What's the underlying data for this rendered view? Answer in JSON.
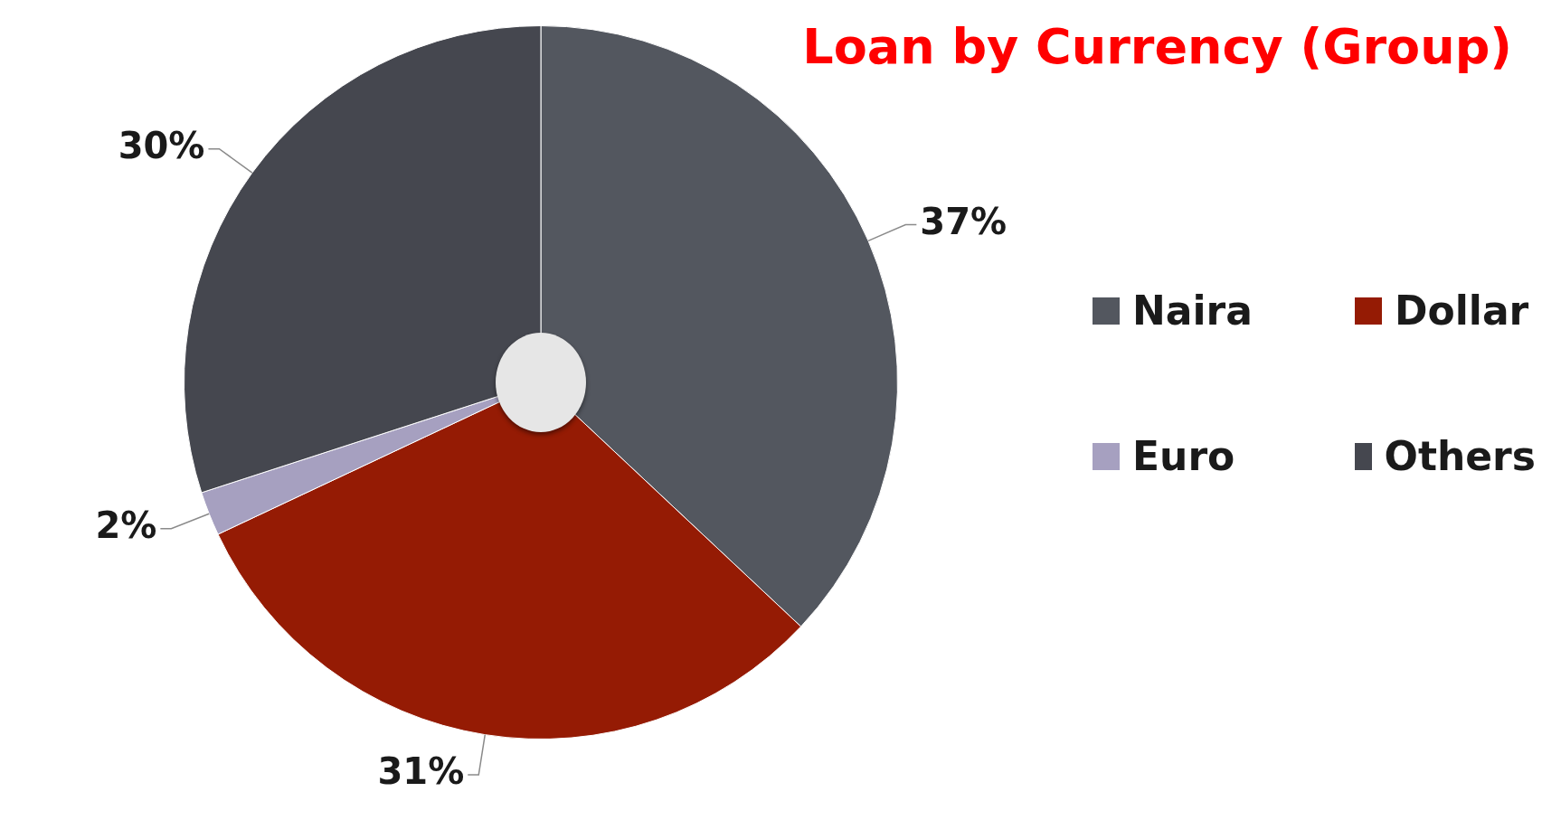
{
  "chart_data": {
    "type": "pie",
    "title": "Loan by Currency (Group)",
    "categories": [
      "Naira",
      "Dollar",
      "Euro",
      "Others"
    ],
    "values": [
      37,
      31,
      2,
      30
    ],
    "value_labels": [
      "37%",
      "31%",
      "2%",
      "30%"
    ],
    "colors": [
      "#53575f",
      "#951b04",
      "#a6a0c0",
      "#45474f"
    ],
    "legend": "right"
  }
}
